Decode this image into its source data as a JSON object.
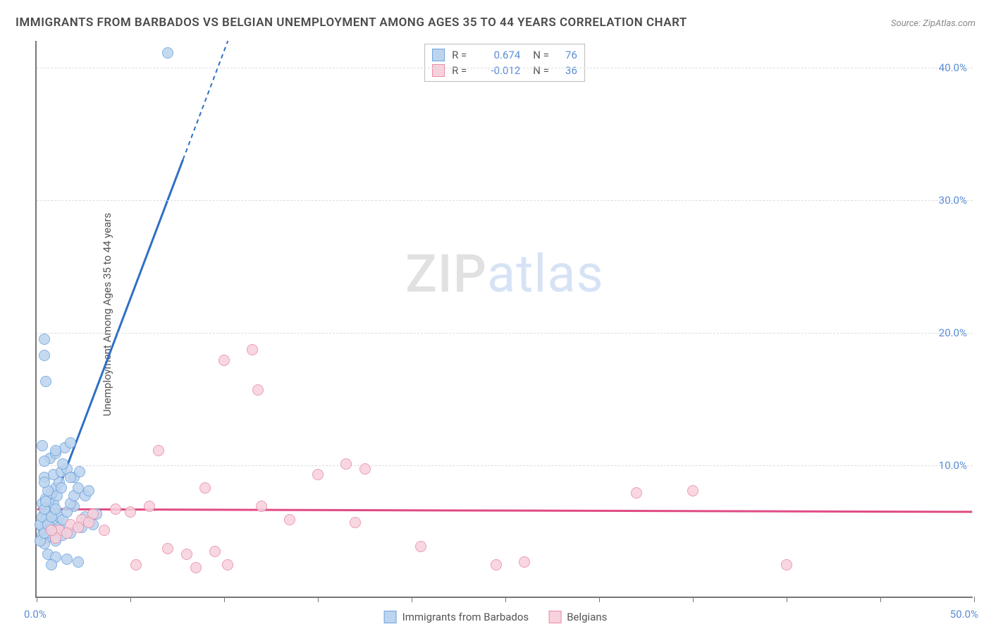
{
  "title": "IMMIGRANTS FROM BARBADOS VS BELGIAN UNEMPLOYMENT AMONG AGES 35 TO 44 YEARS CORRELATION CHART",
  "source_label": "Source: ZipAtlas.com",
  "y_axis_label": "Unemployment Among Ages 35 to 44 years",
  "watermark": {
    "part1": "ZIP",
    "part2": "atlas"
  },
  "xlim": [
    0,
    50
  ],
  "ylim": [
    0,
    42
  ],
  "x_tick_positions": [
    0,
    5,
    10,
    15,
    20,
    25,
    30,
    35,
    40,
    45,
    50
  ],
  "x_axis_min_label": "0.0%",
  "x_axis_max_label": "50.0%",
  "y_ticks": [
    {
      "v": 10,
      "label": "10.0%"
    },
    {
      "v": 20,
      "label": "20.0%"
    },
    {
      "v": 30,
      "label": "30.0%"
    },
    {
      "v": 40,
      "label": "40.0%"
    }
  ],
  "series": [
    {
      "name": "Immigrants from Barbados",
      "color_fill": "#bcd4ee",
      "color_stroke": "#6ea3de",
      "corr_r": "0.674",
      "corr_n": "76",
      "trend": {
        "x1": 0.3,
        "y1": 5.0,
        "x2": 10.2,
        "y2": 42.0,
        "color": "#2f6fc4",
        "dash_from_x": 7.8
      },
      "points": [
        [
          0.3,
          5.2
        ],
        [
          0.4,
          5.0
        ],
        [
          0.5,
          5.5
        ],
        [
          0.6,
          5.8
        ],
        [
          0.4,
          6.2
        ],
        [
          0.8,
          6.0
        ],
        [
          0.9,
          6.5
        ],
        [
          0.3,
          4.6
        ],
        [
          0.5,
          4.4
        ],
        [
          0.7,
          4.8
        ],
        [
          0.8,
          5.2
        ],
        [
          1.0,
          5.0
        ],
        [
          1.1,
          5.6
        ],
        [
          1.2,
          6.0
        ],
        [
          0.3,
          7.0
        ],
        [
          0.5,
          7.4
        ],
        [
          0.8,
          7.8
        ],
        [
          1.0,
          8.2
        ],
        [
          1.2,
          8.6
        ],
        [
          0.6,
          8.0
        ],
        [
          0.4,
          9.0
        ],
        [
          0.9,
          9.2
        ],
        [
          1.3,
          9.4
        ],
        [
          1.6,
          9.6
        ],
        [
          2.0,
          9.0
        ],
        [
          2.3,
          9.4
        ],
        [
          0.7,
          10.4
        ],
        [
          1.0,
          10.8
        ],
        [
          1.5,
          11.2
        ],
        [
          1.8,
          11.6
        ],
        [
          0.3,
          11.4
        ],
        [
          0.5,
          16.2
        ],
        [
          0.4,
          18.2
        ],
        [
          0.4,
          19.4
        ],
        [
          0.6,
          3.2
        ],
        [
          1.0,
          3.0
        ],
        [
          1.6,
          2.8
        ],
        [
          2.2,
          2.6
        ],
        [
          0.8,
          2.4
        ],
        [
          0.4,
          4.0
        ],
        [
          1.0,
          4.2
        ],
        [
          1.4,
          4.6
        ],
        [
          1.8,
          4.8
        ],
        [
          2.4,
          5.2
        ],
        [
          2.6,
          6.0
        ],
        [
          2.0,
          6.8
        ],
        [
          2.6,
          7.6
        ],
        [
          2.8,
          8.0
        ],
        [
          3.0,
          5.4
        ],
        [
          3.2,
          6.2
        ],
        [
          0.5,
          5.8
        ],
        [
          0.7,
          6.4
        ],
        [
          0.9,
          7.0
        ],
        [
          1.1,
          7.6
        ],
        [
          1.3,
          8.2
        ],
        [
          0.4,
          8.6
        ],
        [
          0.2,
          5.4
        ],
        [
          0.3,
          6.0
        ],
        [
          0.4,
          6.6
        ],
        [
          0.5,
          7.2
        ],
        [
          1.0,
          11.0
        ],
        [
          1.4,
          10.0
        ],
        [
          1.8,
          9.0
        ],
        [
          0.4,
          10.2
        ],
        [
          0.2,
          4.2
        ],
        [
          0.4,
          4.8
        ],
        [
          0.6,
          5.4
        ],
        [
          0.8,
          6.0
        ],
        [
          1.0,
          6.6
        ],
        [
          7.0,
          41.0
        ],
        [
          1.2,
          5.2
        ],
        [
          1.4,
          5.8
        ],
        [
          1.6,
          6.4
        ],
        [
          1.8,
          7.0
        ],
        [
          2.0,
          7.6
        ],
        [
          2.2,
          8.2
        ]
      ]
    },
    {
      "name": "Belgians",
      "color_fill": "#f7d1dc",
      "color_stroke": "#e88ca8",
      "corr_r": "-0.012",
      "corr_n": "36",
      "trend": {
        "x1": 0,
        "y1": 6.6,
        "x2": 50,
        "y2": 6.4,
        "color": "#e04b84",
        "dash_from_x": 999
      },
      "points": [
        [
          1.2,
          5.0
        ],
        [
          1.8,
          5.4
        ],
        [
          2.4,
          5.8
        ],
        [
          3.0,
          6.2
        ],
        [
          3.6,
          5.0
        ],
        [
          4.2,
          6.6
        ],
        [
          5.0,
          6.4
        ],
        [
          5.3,
          2.4
        ],
        [
          6.0,
          6.8
        ],
        [
          6.5,
          11.0
        ],
        [
          7.0,
          3.6
        ],
        [
          8.0,
          3.2
        ],
        [
          8.5,
          2.2
        ],
        [
          9.0,
          8.2
        ],
        [
          9.5,
          3.4
        ],
        [
          10.2,
          2.4
        ],
        [
          10.0,
          17.8
        ],
        [
          11.5,
          18.6
        ],
        [
          11.8,
          15.6
        ],
        [
          12.0,
          6.8
        ],
        [
          13.5,
          5.8
        ],
        [
          15.0,
          9.2
        ],
        [
          16.5,
          10.0
        ],
        [
          17.5,
          9.6
        ],
        [
          17.0,
          5.6
        ],
        [
          20.5,
          3.8
        ],
        [
          24.5,
          2.4
        ],
        [
          32.0,
          7.8
        ],
        [
          35.0,
          8.0
        ],
        [
          1.0,
          4.4
        ],
        [
          1.6,
          4.8
        ],
        [
          2.2,
          5.2
        ],
        [
          2.8,
          5.6
        ],
        [
          0.8,
          5.0
        ],
        [
          40.0,
          2.4
        ],
        [
          26.0,
          2.6
        ]
      ]
    }
  ],
  "correlation_legend_labels": {
    "r": "R  =",
    "n": "N  ="
  },
  "point_radius": 8,
  "point_stroke_width": 1.2,
  "background_color": "#ffffff",
  "grid_color": "#dddddd"
}
